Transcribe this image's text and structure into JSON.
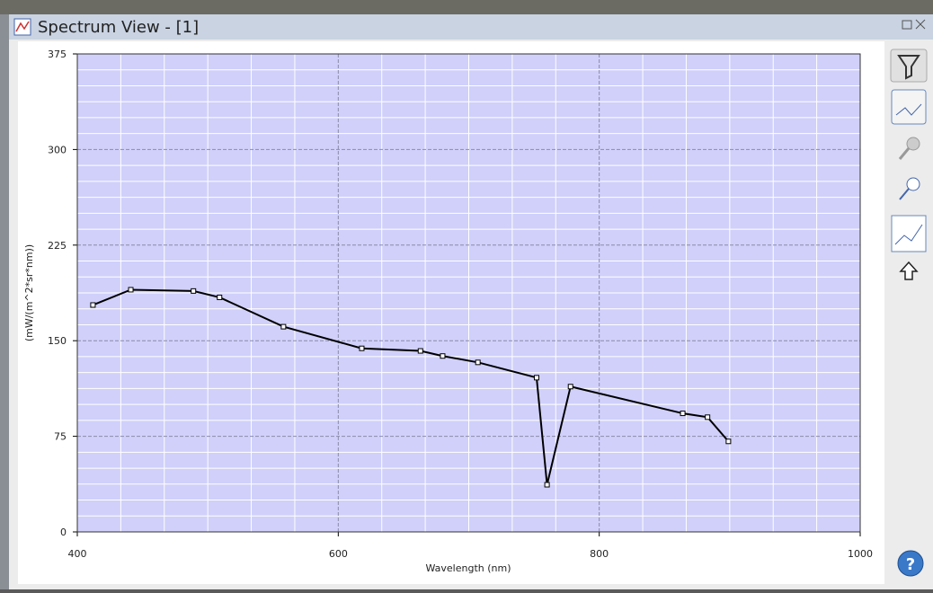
{
  "window": {
    "title": "Spectrum View - [1]"
  },
  "chart_data": {
    "type": "line",
    "xlabel": "Wavelength (nm)",
    "ylabel": "(mW/(m^2*sr*nm))",
    "x": [
      412,
      441,
      489,
      509,
      558,
      618,
      663,
      680,
      707,
      752,
      760,
      778,
      864,
      883,
      899
    ],
    "series": [
      {
        "color": "#000000",
        "values": [
          178,
          190,
          189,
          184,
          161,
          144,
          142,
          138,
          133,
          121,
          37,
          114,
          93,
          90,
          71
        ]
      }
    ],
    "xlim": [
      400,
      1000
    ],
    "xticks": [
      400,
      600,
      800,
      1000
    ],
    "ylim": [
      0,
      375
    ],
    "yticks": [
      0,
      75,
      150,
      225,
      300,
      375
    ],
    "grid": true
  }
}
